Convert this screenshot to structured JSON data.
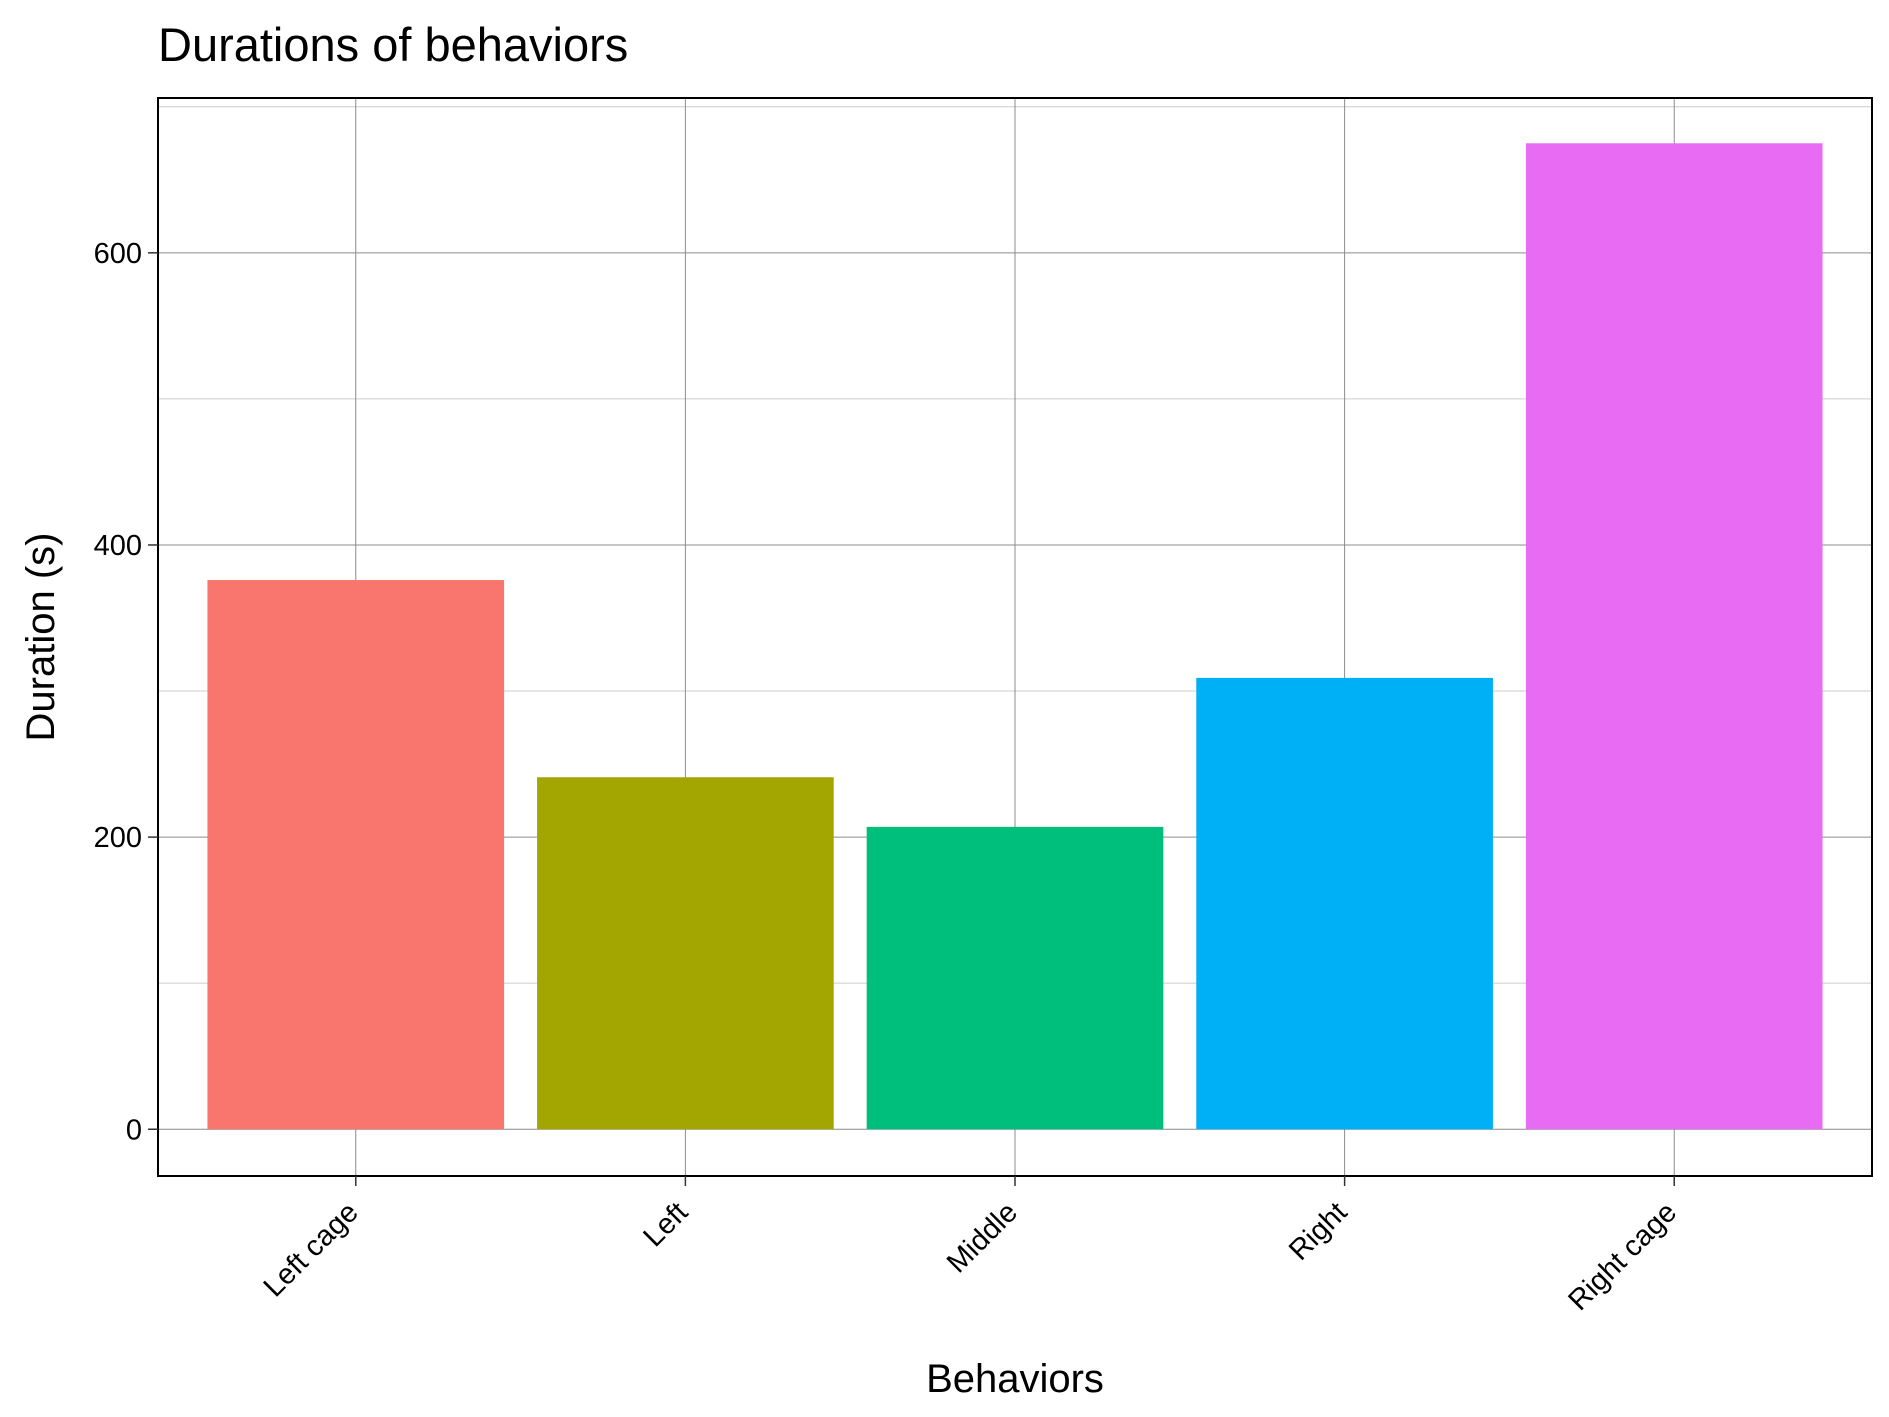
{
  "chart_data": {
    "type": "bar",
    "title": "Durations of behaviors",
    "xlabel": "Behaviors",
    "ylabel": "Duration (s)",
    "categories": [
      "Left cage",
      "Left",
      "Middle",
      "Right",
      "Right cage"
    ],
    "values": [
      376,
      241,
      207,
      309,
      675
    ],
    "colors": [
      "#F8766D",
      "#A3A500",
      "#00BF7D",
      "#00B0F6",
      "#E76BF3"
    ],
    "ylim": [
      -32,
      706
    ],
    "yticks": [
      0,
      200,
      400,
      600
    ],
    "grid": true,
    "legend": "none"
  }
}
